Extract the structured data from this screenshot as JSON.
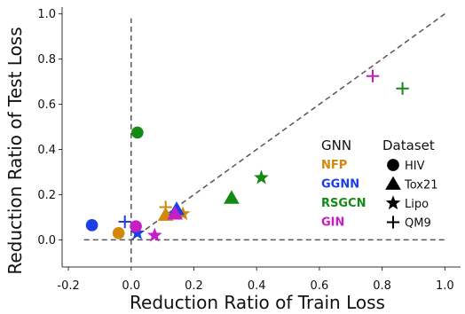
{
  "chart_data": {
    "type": "scatter",
    "xlabel": "Reduction Ratio of Train Loss",
    "ylabel": "Reduction Ratio of Test Loss",
    "xlim": [
      -0.22,
      1.05
    ],
    "ylim": [
      -0.12,
      1.03
    ],
    "x_ticks": [
      "-0.2",
      "0.0",
      "0.2",
      "0.4",
      "0.6",
      "0.8",
      "1.0"
    ],
    "x_tick_values": [
      -0.2,
      0.0,
      0.2,
      0.4,
      0.6,
      0.8,
      1.0
    ],
    "y_ticks": [
      "0.0",
      "0.2",
      "0.4",
      "0.6",
      "0.8",
      "1.0"
    ],
    "y_tick_values": [
      0.0,
      0.2,
      0.4,
      0.6,
      0.8,
      1.0
    ],
    "reference_lines": [
      {
        "type": "diagonal",
        "from": [
          0.0,
          0.0
        ],
        "to": [
          1.0,
          1.0
        ],
        "style": "dashed"
      },
      {
        "type": "horizontal",
        "y": 0.0,
        "style": "dashed"
      },
      {
        "type": "vertical",
        "x": 0.0,
        "style": "dashed"
      }
    ],
    "legend": {
      "model_title": "GNN",
      "dataset_title": "Dataset",
      "models": [
        {
          "name": "NFP",
          "color": "#d4860a"
        },
        {
          "name": "GGNN",
          "color": "#1a3fe6"
        },
        {
          "name": "RSGCN",
          "color": "#138a13"
        },
        {
          "name": "GIN",
          "color": "#c41ec4"
        }
      ],
      "datasets": [
        {
          "name": "HIV",
          "marker": "circle"
        },
        {
          "name": "Tox21",
          "marker": "triangle"
        },
        {
          "name": "Lipo",
          "marker": "star"
        },
        {
          "name": "QM9",
          "marker": "plus"
        }
      ]
    },
    "points": [
      {
        "model": "NFP",
        "dataset": "HIV",
        "x": -0.04,
        "y": 0.03
      },
      {
        "model": "NFP",
        "dataset": "Tox21",
        "x": 0.11,
        "y": 0.11
      },
      {
        "model": "NFP",
        "dataset": "Lipo",
        "x": 0.165,
        "y": 0.115
      },
      {
        "model": "NFP",
        "dataset": "QM9",
        "x": 0.11,
        "y": 0.145
      },
      {
        "model": "GGNN",
        "dataset": "HIV",
        "x": -0.125,
        "y": 0.065
      },
      {
        "model": "GGNN",
        "dataset": "Tox21",
        "x": 0.145,
        "y": 0.135
      },
      {
        "model": "GGNN",
        "dataset": "Lipo",
        "x": 0.02,
        "y": 0.03
      },
      {
        "model": "GGNN",
        "dataset": "QM9",
        "x": -0.02,
        "y": 0.08
      },
      {
        "model": "RSGCN",
        "dataset": "HIV",
        "x": 0.02,
        "y": 0.475
      },
      {
        "model": "RSGCN",
        "dataset": "Tox21",
        "x": 0.32,
        "y": 0.185
      },
      {
        "model": "RSGCN",
        "dataset": "Lipo",
        "x": 0.415,
        "y": 0.275
      },
      {
        "model": "RSGCN",
        "dataset": "QM9",
        "x": 0.865,
        "y": 0.67
      },
      {
        "model": "GIN",
        "dataset": "HIV",
        "x": 0.015,
        "y": 0.06
      },
      {
        "model": "GIN",
        "dataset": "Tox21",
        "x": 0.14,
        "y": 0.115
      },
      {
        "model": "GIN",
        "dataset": "Lipo",
        "x": 0.075,
        "y": 0.02
      },
      {
        "model": "GIN",
        "dataset": "QM9",
        "x": 0.77,
        "y": 0.725
      }
    ]
  }
}
